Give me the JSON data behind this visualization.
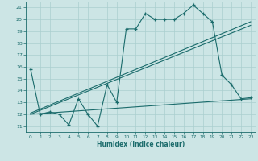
{
  "xlabel": "Humidex (Indice chaleur)",
  "bg_color": "#cce5e5",
  "line_color": "#1a6b6b",
  "grid_color": "#aacfcf",
  "xlim": [
    -0.5,
    23.5
  ],
  "ylim": [
    10.5,
    21.5
  ],
  "xticks": [
    0,
    1,
    2,
    3,
    4,
    5,
    6,
    7,
    8,
    9,
    10,
    11,
    12,
    13,
    14,
    15,
    16,
    17,
    18,
    19,
    20,
    21,
    22,
    23
  ],
  "yticks": [
    11,
    12,
    13,
    14,
    15,
    16,
    17,
    18,
    19,
    20,
    21
  ],
  "jagged_x": [
    0,
    1,
    2,
    3,
    4,
    5,
    6,
    7,
    8,
    9,
    10,
    11,
    12,
    13,
    14,
    15,
    16,
    17,
    18,
    19,
    20,
    21,
    22,
    23
  ],
  "jagged_y": [
    15.8,
    12.0,
    12.2,
    12.0,
    11.1,
    13.3,
    12.0,
    11.0,
    14.5,
    13.0,
    19.2,
    19.2,
    20.5,
    20.0,
    20.0,
    20.0,
    20.5,
    21.2,
    20.5,
    19.8,
    15.3,
    14.5,
    13.3,
    13.4
  ],
  "line1_x": [
    0,
    23
  ],
  "line1_y": [
    12.0,
    19.5
  ],
  "line2_x": [
    0,
    23
  ],
  "line2_y": [
    12.1,
    19.8
  ],
  "line3_x": [
    0,
    23
  ],
  "line3_y": [
    12.0,
    13.3
  ]
}
